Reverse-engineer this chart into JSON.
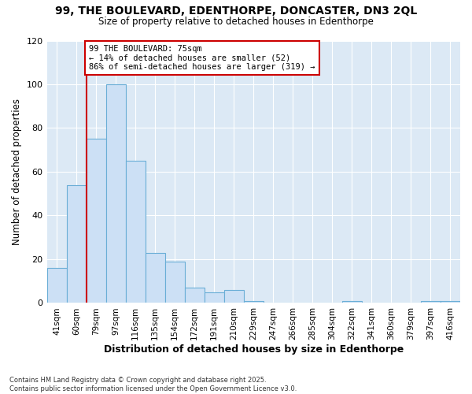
{
  "title_line1": "99, THE BOULEVARD, EDENTHORPE, DONCASTER, DN3 2QL",
  "title_line2": "Size of property relative to detached houses in Edenthorpe",
  "xlabel": "Distribution of detached houses by size in Edenthorpe",
  "ylabel": "Number of detached properties",
  "categories": [
    "41sqm",
    "60sqm",
    "79sqm",
    "97sqm",
    "116sqm",
    "135sqm",
    "154sqm",
    "172sqm",
    "191sqm",
    "210sqm",
    "229sqm",
    "247sqm",
    "266sqm",
    "285sqm",
    "304sqm",
    "322sqm",
    "341sqm",
    "360sqm",
    "379sqm",
    "397sqm",
    "416sqm"
  ],
  "values": [
    16,
    54,
    75,
    100,
    65,
    23,
    19,
    7,
    5,
    6,
    1,
    0,
    0,
    0,
    0,
    1,
    0,
    0,
    0,
    1,
    1
  ],
  "bar_color": "#cce0f5",
  "bar_edge_color": "#6aaed6",
  "vline_x": 1.5,
  "vline_color": "#cc0000",
  "annotation_text": "99 THE BOULEVARD: 75sqm\n← 14% of detached houses are smaller (52)\n86% of semi-detached houses are larger (319) →",
  "annotation_box_facecolor": "#ffffff",
  "annotation_border_color": "#cc0000",
  "ylim": [
    0,
    120
  ],
  "yticks": [
    0,
    20,
    40,
    60,
    80,
    100,
    120
  ],
  "fig_bg": "#ffffff",
  "plot_bg": "#dce9f5",
  "grid_color": "#ffffff",
  "footnote": "Contains HM Land Registry data © Crown copyright and database right 2025.\nContains public sector information licensed under the Open Government Licence v3.0."
}
